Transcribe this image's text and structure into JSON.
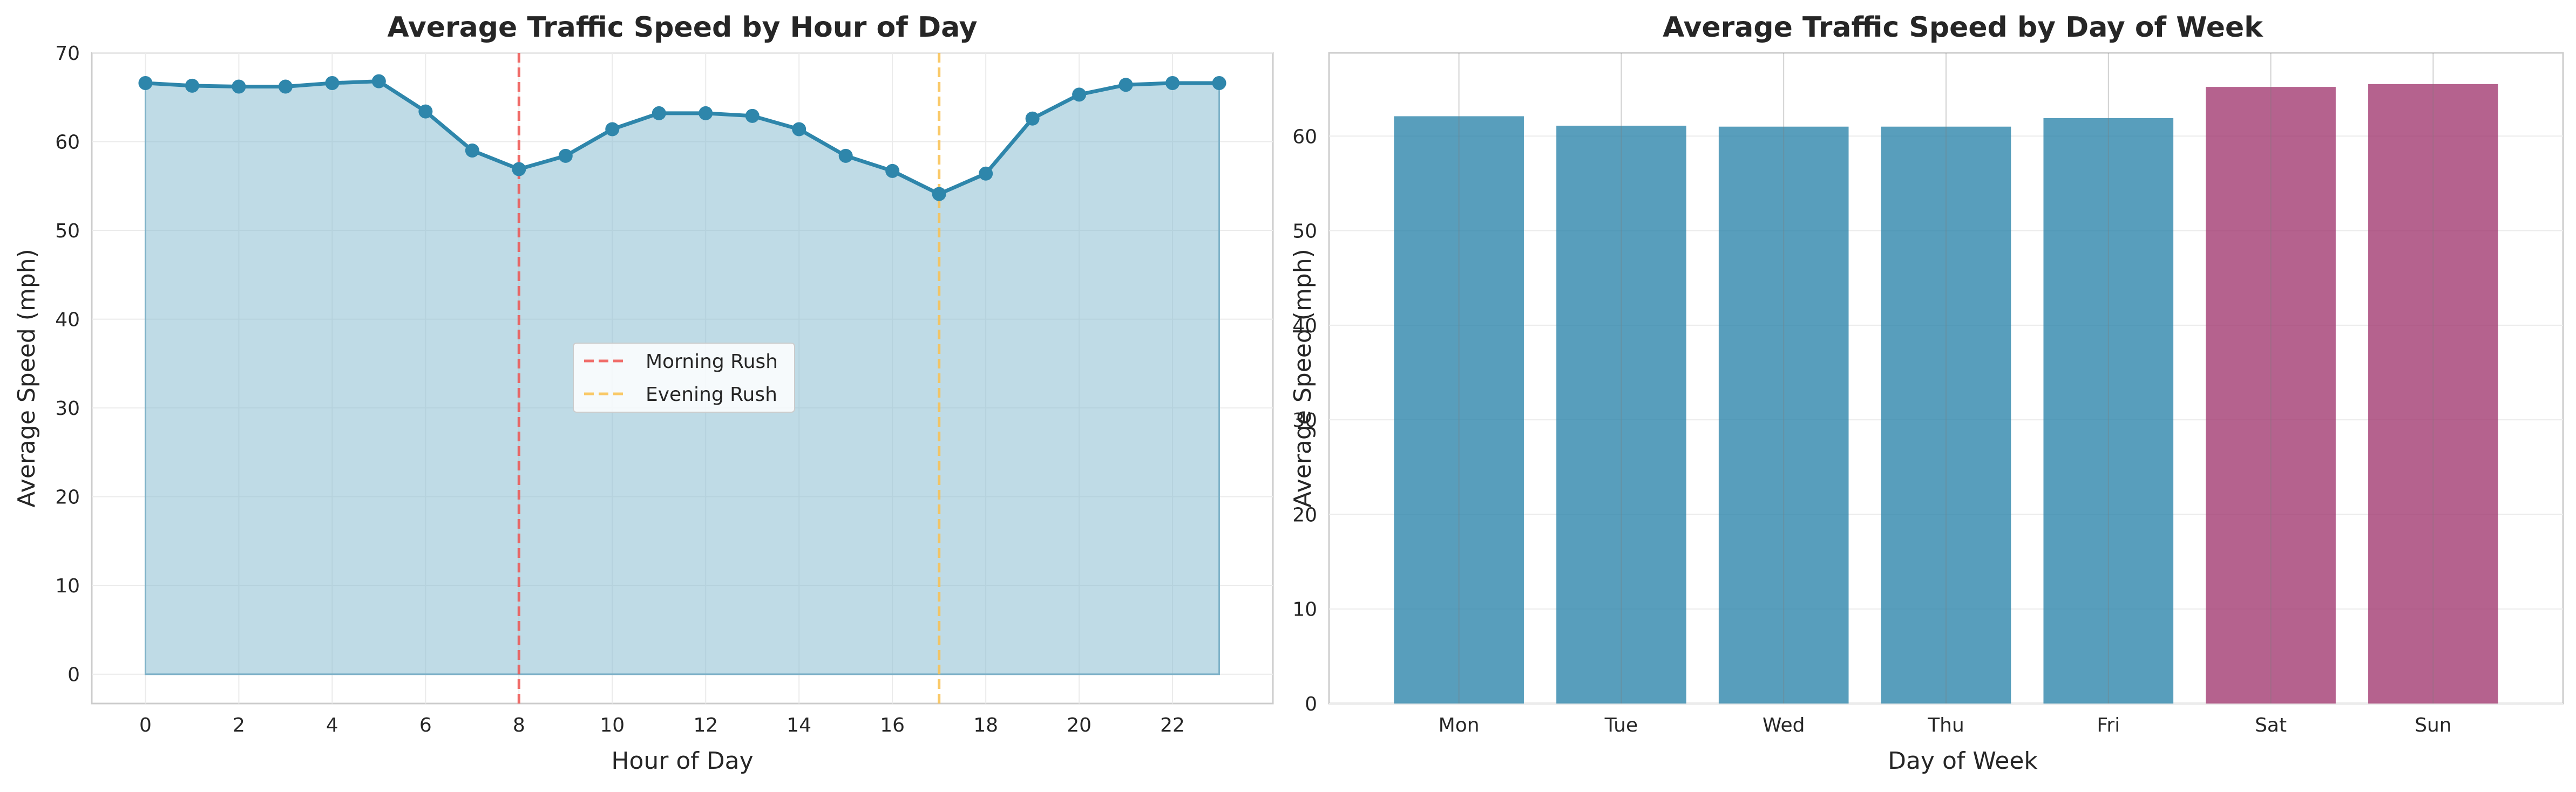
{
  "chart_data": [
    {
      "type": "line",
      "title": "Average Traffic Speed by Hour of Day",
      "xlabel": "Hour of Day",
      "ylabel": "Average Speed (mph)",
      "x": [
        0,
        1,
        2,
        3,
        4,
        5,
        6,
        7,
        8,
        9,
        10,
        11,
        12,
        13,
        14,
        15,
        16,
        17,
        18,
        19,
        20,
        21,
        22,
        23
      ],
      "xticks": [
        "0",
        "2",
        "4",
        "6",
        "8",
        "10",
        "12",
        "14",
        "16",
        "18",
        "20",
        "22"
      ],
      "yticks": [
        "0",
        "10",
        "20",
        "30",
        "40",
        "50",
        "60",
        "70"
      ],
      "xlim": [
        -1.15,
        24.15
      ],
      "ylim": [
        -3.3,
        70
      ],
      "area_fill": true,
      "grid": true,
      "series": [
        {
          "values": [
            66.6,
            66.3,
            66.2,
            66.2,
            66.6,
            66.8,
            63.4,
            59.0,
            56.9,
            58.4,
            61.4,
            63.2,
            63.2,
            62.9,
            61.4,
            58.4,
            56.7,
            54.1,
            56.4,
            62.6,
            65.3,
            66.4,
            66.6,
            66.6
          ],
          "color": "#2e86ab"
        }
      ],
      "vlines": [
        {
          "x": 8,
          "label": "Morning Rush",
          "color": "#ef5350"
        },
        {
          "x": 17,
          "label": "Evening Rush",
          "color": "#f9c04d"
        }
      ],
      "legend_position": "center"
    },
    {
      "type": "bar",
      "title": "Average Traffic Speed by Day of Week",
      "xlabel": "Day of Week",
      "ylabel": "Average Speed (mph)",
      "categories": [
        "Mon",
        "Tue",
        "Wed",
        "Thu",
        "Fri",
        "Sat",
        "Sun"
      ],
      "values": [
        62.1,
        61.1,
        61.0,
        61.0,
        61.9,
        65.2,
        65.5
      ],
      "colors": [
        "#2e86ab",
        "#2e86ab",
        "#2e86ab",
        "#2e86ab",
        "#2e86ab",
        "#a23b72",
        "#a23b72"
      ],
      "yticks": [
        "0",
        "10",
        "20",
        "30",
        "40",
        "50",
        "60"
      ],
      "ylim": [
        0,
        68.8
      ],
      "grid": true
    }
  ]
}
